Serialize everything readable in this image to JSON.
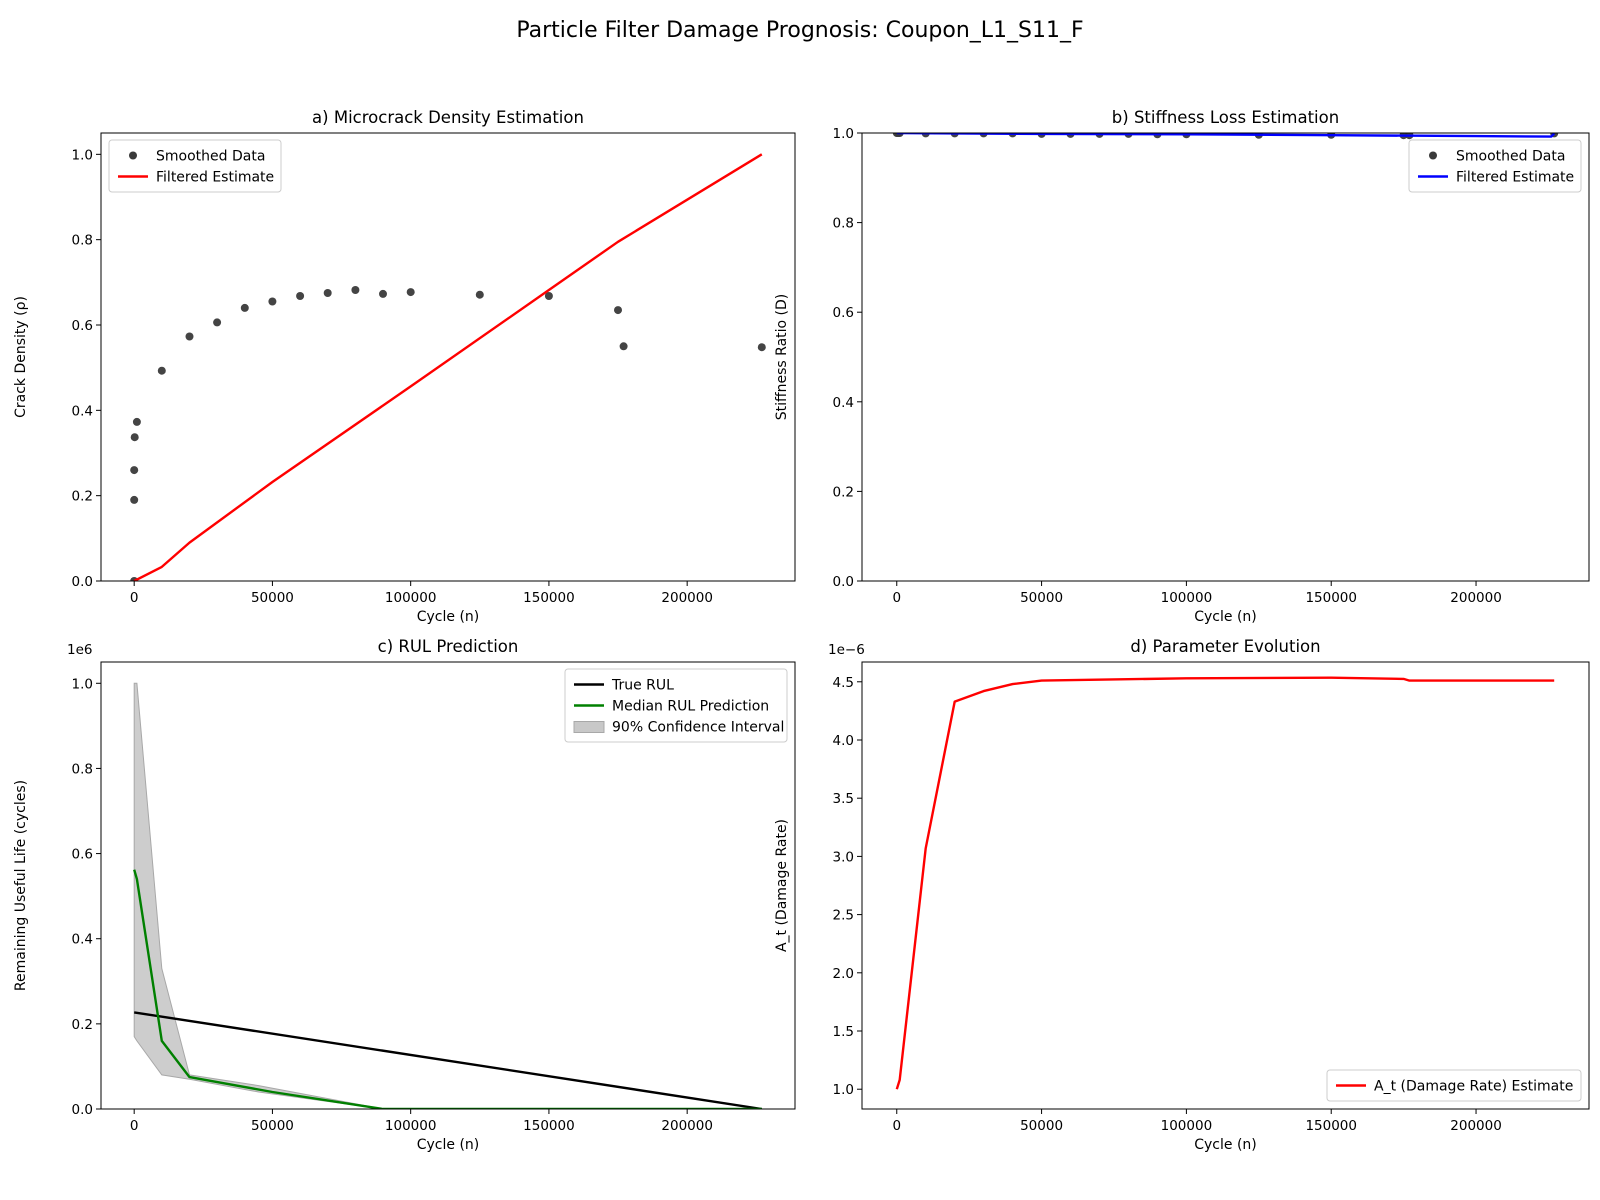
{
  "figure": {
    "title": "Particle Filter Damage Prognosis: Coupon_L1_S11_F"
  },
  "chart_data": [
    {
      "id": "a",
      "type": "line",
      "title": "a) Microcrack Density Estimation",
      "xlabel": "Cycle (n)",
      "ylabel": "Crack Density (ρ)",
      "xlim": [
        -12000,
        239000
      ],
      "ylim": [
        0,
        1.05
      ],
      "xticks": [
        0,
        50000,
        100000,
        150000,
        200000
      ],
      "yticks": [
        0.0,
        0.2,
        0.4,
        0.6,
        0.8,
        1.0
      ],
      "legend": "top-left",
      "series": [
        {
          "name": "Smoothed Data",
          "kind": "scatter",
          "color": "#3a3a3a",
          "points": [
            [
              0,
              0.0
            ],
            [
              0,
              0.19
            ],
            [
              0,
              0.26
            ],
            [
              200,
              0.337
            ],
            [
              1000,
              0.373
            ],
            [
              10000,
              0.493
            ],
            [
              20000,
              0.573
            ],
            [
              30000,
              0.606
            ],
            [
              40000,
              0.64
            ],
            [
              50000,
              0.655
            ],
            [
              60000,
              0.668
            ],
            [
              70000,
              0.675
            ],
            [
              80000,
              0.682
            ],
            [
              90000,
              0.673
            ],
            [
              100000,
              0.677
            ],
            [
              125000,
              0.671
            ],
            [
              150000,
              0.668
            ],
            [
              175000,
              0.635
            ],
            [
              177000,
              0.55
            ],
            [
              227000,
              0.548
            ]
          ]
        },
        {
          "name": "Filtered Estimate",
          "kind": "line",
          "color": "#ff0000",
          "points": [
            [
              0,
              0.0
            ],
            [
              10000,
              0.033
            ],
            [
              20000,
              0.09
            ],
            [
              50000,
              0.232
            ],
            [
              100000,
              0.456
            ],
            [
              150000,
              0.682
            ],
            [
              175000,
              0.795
            ],
            [
              227000,
              1.0
            ]
          ]
        }
      ]
    },
    {
      "id": "b",
      "type": "line",
      "title": "b) Stiffness Loss Estimation",
      "xlabel": "Cycle (n)",
      "ylabel": "Stiffness Ratio (D)",
      "xlim": [
        -12000,
        239000
      ],
      "ylim": [
        0,
        1.0
      ],
      "xticks": [
        0,
        50000,
        100000,
        150000,
        200000
      ],
      "yticks": [
        0.0,
        0.2,
        0.4,
        0.6,
        0.8,
        1.0
      ],
      "legend": "top-right",
      "series": [
        {
          "name": "Smoothed Data",
          "kind": "scatter",
          "color": "#3a3a3a",
          "points": [
            [
              0,
              1.0
            ],
            [
              500,
              1.0
            ],
            [
              1000,
              1.0
            ],
            [
              10000,
              0.999
            ],
            [
              20000,
              0.999
            ],
            [
              30000,
              0.999
            ],
            [
              40000,
              0.999
            ],
            [
              50000,
              0.998
            ],
            [
              60000,
              0.998
            ],
            [
              70000,
              0.998
            ],
            [
              80000,
              0.998
            ],
            [
              90000,
              0.997
            ],
            [
              100000,
              0.997
            ],
            [
              125000,
              0.996
            ],
            [
              150000,
              0.996
            ],
            [
              175000,
              0.995
            ],
            [
              177000,
              0.995
            ],
            [
              227000,
              0.999
            ]
          ]
        },
        {
          "name": "Filtered Estimate",
          "kind": "line",
          "color": "#0000ff",
          "points": [
            [
              0,
              1.0
            ],
            [
              50000,
              0.998
            ],
            [
              100000,
              0.997
            ],
            [
              150000,
              0.995
            ],
            [
              200000,
              0.993
            ],
            [
              226000,
              0.992
            ],
            [
              227000,
              0.999
            ]
          ]
        }
      ]
    },
    {
      "id": "c",
      "type": "line",
      "title": "c) RUL Prediction",
      "xlabel": "Cycle (n)",
      "ylabel": "Remaining Useful Life (cycles)",
      "offset_label": "1e6",
      "scale": 1000000,
      "xlim": [
        -12000,
        239000
      ],
      "ylim": [
        0,
        1.05
      ],
      "xticks": [
        0,
        50000,
        100000,
        150000,
        200000
      ],
      "yticks": [
        0.0,
        0.2,
        0.4,
        0.6,
        0.8,
        1.0
      ],
      "legend": "top-right",
      "series": [
        {
          "name": "True RUL",
          "kind": "line",
          "color": "#000000",
          "points": [
            [
              0,
              0.227
            ],
            [
              227000,
              0.0
            ]
          ]
        },
        {
          "name": "Median RUL Prediction",
          "kind": "line",
          "color": "#008000",
          "points": [
            [
              0,
              0.562
            ],
            [
              1000,
              0.54
            ],
            [
              10000,
              0.16
            ],
            [
              20000,
              0.075
            ],
            [
              50000,
              0.04
            ],
            [
              90000,
              0.0
            ],
            [
              227000,
              0.0
            ]
          ]
        }
      ],
      "bands": [
        {
          "name": "90% Confidence Interval",
          "color": "#c8c8c8",
          "x": [
            0,
            1000,
            10000,
            20000,
            45000,
            90000,
            227000
          ],
          "upper": [
            1.0,
            1.0,
            0.33,
            0.08,
            0.055,
            0.0,
            0.0
          ],
          "lower": [
            0.17,
            0.16,
            0.08,
            0.07,
            0.04,
            0.0,
            0.0
          ]
        }
      ]
    },
    {
      "id": "d",
      "type": "line",
      "title": "d) Parameter Evolution",
      "xlabel": "Cycle (n)",
      "ylabel": "A_t (Damage Rate)",
      "ylabel_color": "#ff0000",
      "offset_label": "1e−6",
      "scale": 1e-06,
      "xlim": [
        -12000,
        239000
      ],
      "ylim": [
        0.83,
        4.67
      ],
      "xticks": [
        0,
        50000,
        100000,
        150000,
        200000
      ],
      "yticks": [
        1.0,
        1.5,
        2.0,
        2.5,
        3.0,
        3.5,
        4.0,
        4.5
      ],
      "legend": "bottom-right",
      "series": [
        {
          "name": "A_t (Damage Rate) Estimate",
          "kind": "line",
          "color": "#ff0000",
          "points": [
            [
              0,
              1.0
            ],
            [
              1000,
              1.08
            ],
            [
              10000,
              3.07
            ],
            [
              20000,
              4.33
            ],
            [
              30000,
              4.42
            ],
            [
              40000,
              4.48
            ],
            [
              50000,
              4.51
            ],
            [
              100000,
              4.53
            ],
            [
              150000,
              4.535
            ],
            [
              175000,
              4.525
            ],
            [
              177000,
              4.51
            ],
            [
              227000,
              4.51
            ]
          ]
        }
      ]
    }
  ]
}
